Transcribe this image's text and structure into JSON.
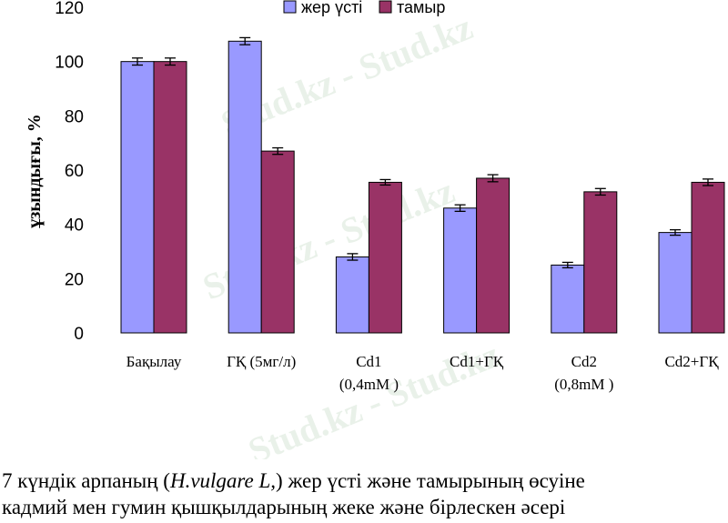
{
  "chart_data": {
    "type": "bar",
    "categories": [
      [
        "Бақылау"
      ],
      [
        "ГҚ (5мг/л)"
      ],
      [
        "Cd1",
        "(0,4mM )"
      ],
      [
        "Cd1+ГҚ"
      ],
      [
        "Cd2",
        "(0,8mM )"
      ],
      [
        "Cd2+ГҚ"
      ]
    ],
    "series": [
      {
        "name": "жер үсті",
        "color": "#9999ff",
        "values": [
          100,
          107.5,
          28,
          46,
          25,
          37
        ],
        "errors": [
          1.3,
          1.3,
          1.2,
          1.2,
          1.0,
          1.0
        ]
      },
      {
        "name": "тамыр",
        "color": "#993366",
        "values": [
          100,
          67,
          55.5,
          57,
          52,
          55.5
        ],
        "errors": [
          1.3,
          1.2,
          1.0,
          1.3,
          1.2,
          1.2
        ]
      }
    ],
    "ylabel": "ұзындығы, %",
    "ylim": [
      0,
      120
    ],
    "yticks": [
      0,
      20,
      40,
      60,
      80,
      100,
      120
    ],
    "legend": "top"
  },
  "caption": {
    "line1_prefix": "7 күндік арпаның  (",
    "line1_species": "H.vulgare L,",
    "line1_suffix": ") жер үсті және тамырының өсуіне",
    "line2": "кадмий мен гумин қышқылдарының жеке және бірлескен әсері"
  },
  "watermark": "Stud.kz - Stud.kz"
}
